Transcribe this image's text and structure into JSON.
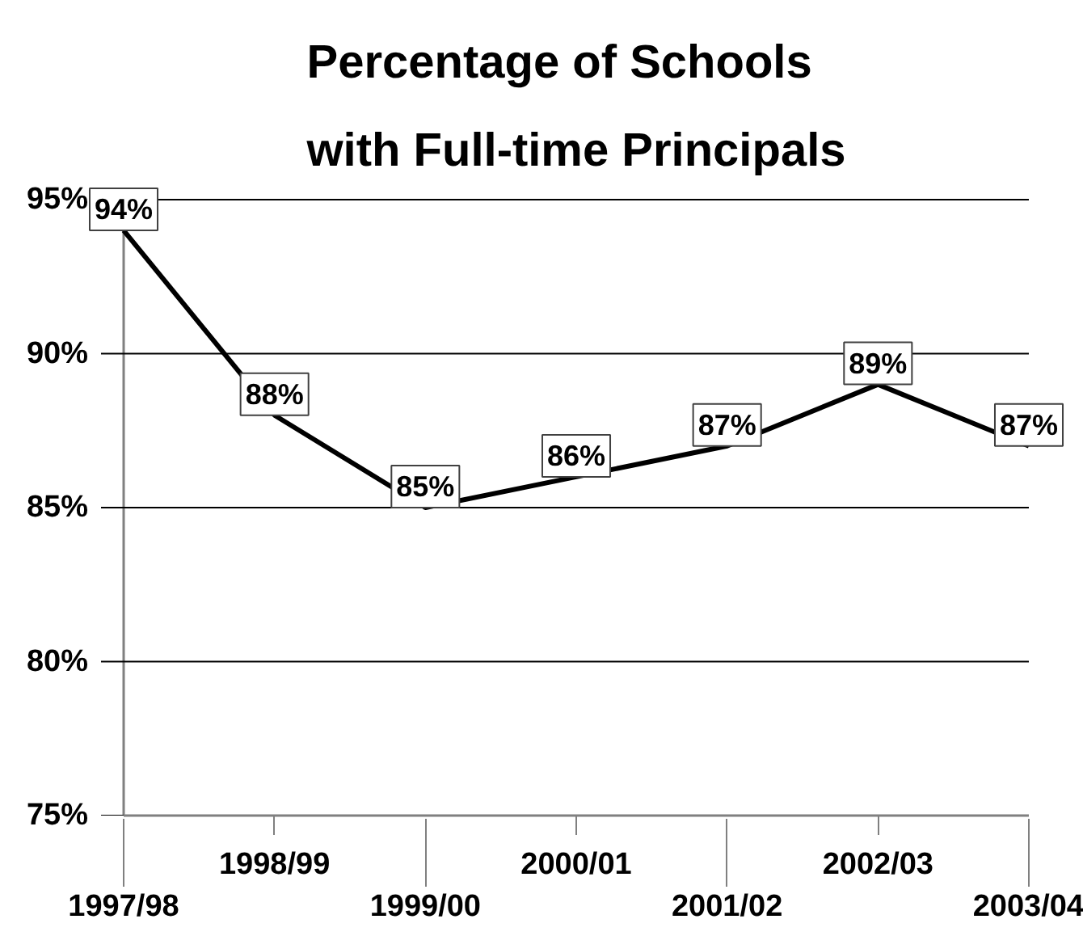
{
  "chart_data": {
    "type": "line",
    "title": "Percentage of Schools\nwith Full-time Principals",
    "categories": [
      "1997/98",
      "1998/99",
      "1999/00",
      "2000/01",
      "2001/02",
      "2002/03",
      "2003/04"
    ],
    "series": [
      {
        "color": "#000000",
        "values": [
          94,
          88,
          85,
          86,
          87,
          89,
          87
        ],
        "value_labels": [
          "94%",
          "88%",
          "85%",
          "86%",
          "87%",
          "89%",
          "87%"
        ]
      }
    ],
    "ylim": [
      75,
      95
    ],
    "yticks": [
      {
        "value": 75,
        "label": "75%"
      },
      {
        "value": 80,
        "label": "80%"
      },
      {
        "value": 85,
        "label": "85%"
      },
      {
        "value": 90,
        "label": "90%"
      },
      {
        "value": 95,
        "label": "95%"
      }
    ],
    "grid": "y",
    "marker": "none",
    "line_style": "solid"
  }
}
